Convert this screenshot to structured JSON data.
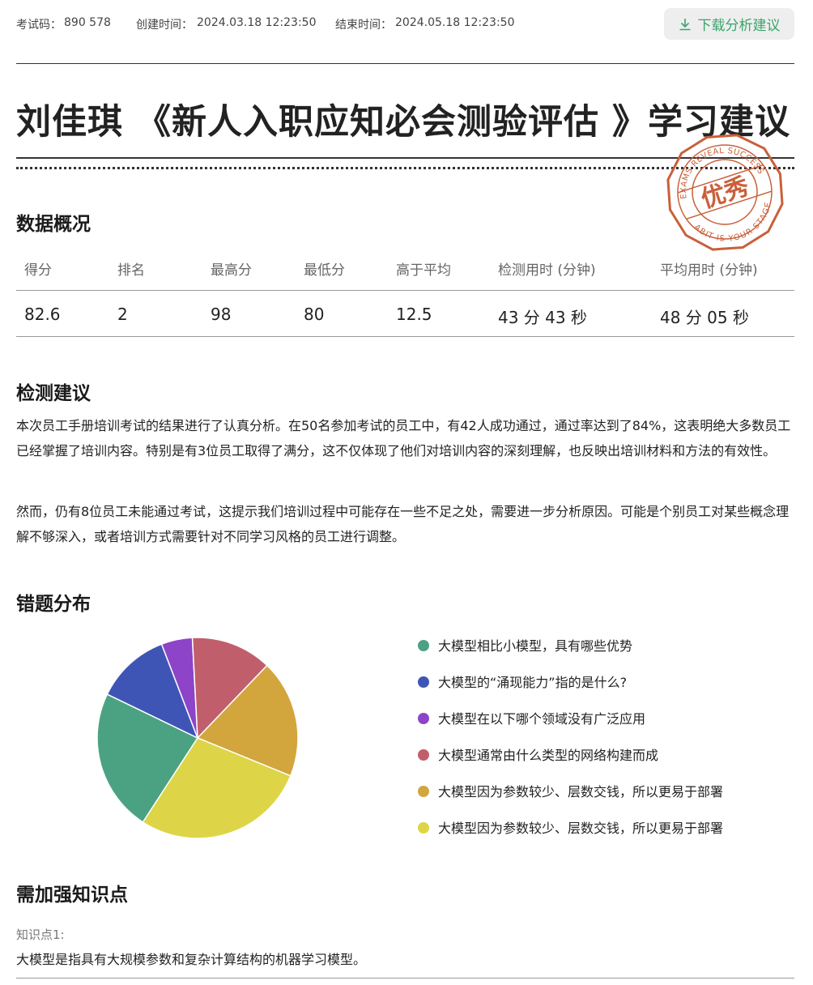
{
  "header": {
    "exam_code_label": "考试码：",
    "exam_code": "890 578",
    "created_label": "创建时间：",
    "created": "2024.03.18 12:23:50",
    "end_label": "结束时间：",
    "end": "2024.05.18 12:23:50",
    "download": "下载分析建议"
  },
  "title": "刘佳琪 《新人入职应知必会测验评估 》学习建议",
  "stamp": {
    "top": "EXAMS REVEAL SUCCESS",
    "center": "优秀",
    "bottom": "ABIT IS YOUR STAGE"
  },
  "overview": {
    "heading": "数据概况",
    "columns": [
      "得分",
      "排名",
      "最高分",
      "最低分",
      "高于平均",
      "检测用时 (分钟)",
      "平均用时 (分钟)"
    ],
    "values": [
      82.6,
      2,
      98,
      80,
      12.5,
      "43 分 43 秒",
      "48 分 05 秒"
    ]
  },
  "advice": {
    "heading": "检测建议",
    "paragraphs": [
      "本次员工手册培训考试的结果进行了认真分析。在50名参加考试的员工中，有42人成功通过，通过率达到了84%，这表明绝大多数员工已经掌握了培训内容。特别是有3位员工取得了满分，这不仅体现了他们对培训内容的深刻理解，也反映出培训材料和方法的有效性。",
      "然而，仍有8位员工未能通过考试，这提示我们培训过程中可能存在一些不足之处，需要进一步分析原因。可能是个别员工对某些概念理解不够深入，或者培训方式需要针对不同学习风格的员工进行调整。"
    ]
  },
  "chart_data": {
    "type": "pie",
    "title": "错题分布",
    "categories": [
      "大模型相比小模型，具有哪些优势",
      "大模型的“涌现能力”指的是什么?",
      "大模型在以下哪个领域没有广泛应用",
      "大模型通常由什么类型的网络构建而成",
      "大模型因为参数较少、层数交钱，所以更易于部署",
      "大模型因为参数较少、层数交钱，所以更易于部署"
    ],
    "values": [
      23,
      12,
      5,
      13,
      19,
      28
    ],
    "colors": [
      "#4ba283",
      "#3f55b5",
      "#8d44c8",
      "#c05f6b",
      "#d2a63d",
      "#ddd547"
    ]
  },
  "knowledge": {
    "heading": "需加强知识点",
    "items": [
      {
        "label": "知识点1:",
        "text": "大模型是指具有大规模参数和复杂计算结构的机器学习模型。"
      }
    ]
  }
}
